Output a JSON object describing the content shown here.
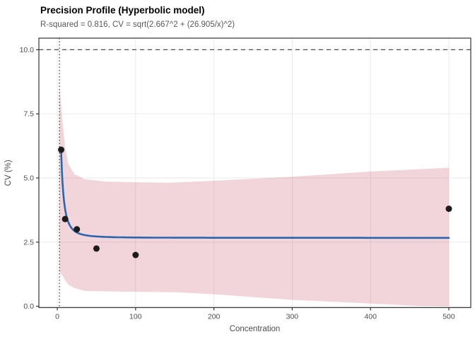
{
  "chart_data": {
    "type": "line",
    "title": "Precision Profile (Hyperbolic model)",
    "subtitle": "R-squared = 0.816, CV = sqrt(2.667^2 + (26.905/x)^2)",
    "xlabel": "Concentration",
    "ylabel": "CV (%)",
    "xlim": [
      -23.5,
      528
    ],
    "ylim": [
      -0.05,
      10.45
    ],
    "x_ticks": [
      0,
      100,
      200,
      300,
      400,
      500
    ],
    "x_tick_labels": [
      "0",
      "100",
      "200",
      "300",
      "400",
      "500"
    ],
    "y_ticks": [
      0,
      2.5,
      5,
      7.5,
      10
    ],
    "y_tick_labels": [
      "0.0",
      "2.5",
      "5.0",
      "7.5",
      "10.0"
    ],
    "grid": true,
    "legend": "none",
    "model_fit": {
      "formula": "CV = sqrt(2.667^2 + (26.905/x)^2)",
      "r_squared": 0.816,
      "sigma_cv": 2.667,
      "k": 26.905,
      "x_range": [
        5,
        500
      ]
    },
    "reference_lines": {
      "horizontal_dashed_cv": 10,
      "vertical_dotted_concentration": 2.79
    },
    "points": [
      {
        "x": 5,
        "y": 6.1
      },
      {
        "x": 10,
        "y": 3.4
      },
      {
        "x": 25,
        "y": 3.0
      },
      {
        "x": 50,
        "y": 2.25
      },
      {
        "x": 100,
        "y": 2.0
      },
      {
        "x": 500,
        "y": 3.8
      }
    ],
    "confidence_band": {
      "upper": [
        [
          2.7,
          8.45
        ],
        [
          3.5,
          8.3
        ],
        [
          5,
          7.8
        ],
        [
          6.5,
          7.25
        ],
        [
          10,
          6.2
        ],
        [
          14,
          5.55
        ],
        [
          22,
          5.15
        ],
        [
          35,
          4.95
        ],
        [
          62,
          4.86
        ],
        [
          140,
          4.81
        ],
        [
          200,
          4.89
        ],
        [
          300,
          5.05
        ],
        [
          400,
          5.25
        ],
        [
          500,
          5.4
        ]
      ],
      "lower": [
        [
          2.7,
          1.35
        ],
        [
          6.5,
          1.2
        ],
        [
          10,
          1.02
        ],
        [
          14,
          0.85
        ],
        [
          22,
          0.71
        ],
        [
          35,
          0.6
        ],
        [
          62,
          0.58
        ],
        [
          150,
          0.55
        ],
        [
          200,
          0.47
        ],
        [
          300,
          0.25
        ],
        [
          400,
          0.11
        ],
        [
          460,
          0.02
        ],
        [
          500,
          0.0
        ]
      ]
    },
    "colors": {
      "curve": "#2b65ad",
      "band_fill": "#be3750",
      "band_opacity": "0.21",
      "points": "#1c1c1c",
      "dashed_line": "#4d4d4d",
      "dotted_line": "#2b2b2b",
      "grid": "#e9e9e9",
      "panel_border": "#333333",
      "tick_mark": "#333333",
      "axis_text": "#4d4d4d",
      "title": "#000000",
      "subtitle": "#5a5a5a"
    }
  }
}
